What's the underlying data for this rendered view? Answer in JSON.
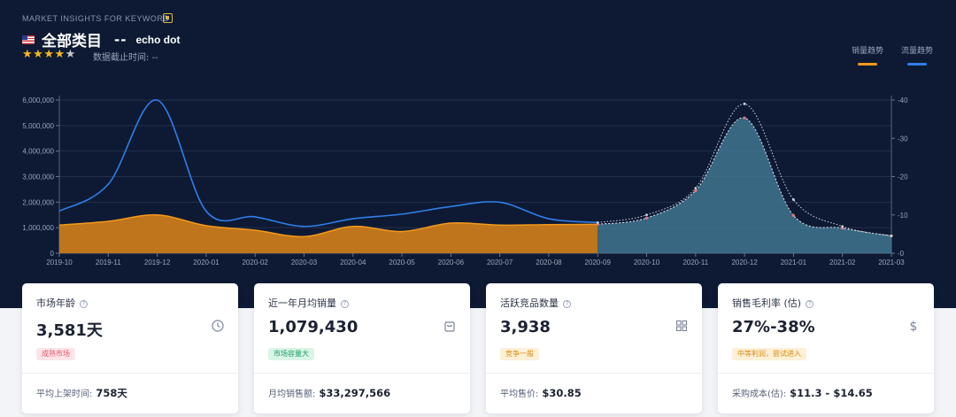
{
  "header": {
    "overline": "MARKET INSIGHTS FOR KEYWORD",
    "title": "全部类目",
    "separator": "--",
    "keyword": "echo dot",
    "rating": 4.5,
    "data_cutoff_label": "数据截止时间:",
    "data_cutoff_value": "--"
  },
  "legend": [
    {
      "label": "销量趋势",
      "color": "#f39a1c"
    },
    {
      "label": "流量趋势",
      "color": "#2f7ee8"
    }
  ],
  "chart_data": {
    "type": "area",
    "x": [
      "2019-10",
      "2019-11",
      "2019-12",
      "2020-01",
      "2020-02",
      "2020-03",
      "2020-04",
      "2020-05",
      "2020-06",
      "2020-07",
      "2020-08",
      "2020-09",
      "2020-10",
      "2020-11",
      "2020-12",
      "2021-01",
      "2021-02",
      "2021-03"
    ],
    "x_ticks": [
      "2019-10",
      "2019-11",
      "2019-12",
      "2020-01",
      "2020-02",
      "2020-03",
      "2020-04",
      "2020-05",
      "2020-06",
      "2020-07",
      "2020-08",
      "2020-09",
      "2020-10",
      "2020-11",
      "2020-12",
      "2021-01",
      "2021-02",
      "2021-03"
    ],
    "y_left": {
      "min": 0,
      "max": 6000000,
      "ticks": [
        "0",
        "1,000,000",
        "2,000,000",
        "3,000,000",
        "4,000,000",
        "5,000,000",
        "6,000,000"
      ]
    },
    "y_right": {
      "min": 0,
      "max": 40,
      "ticks": [
        "0",
        "10",
        "20",
        "30",
        "40"
      ]
    },
    "forecast_from": "2020-09",
    "series": [
      {
        "name": "销量趋势",
        "axis": "left",
        "color": "#f39a1c",
        "fill": "#c97a1a",
        "values": [
          1100000,
          1250000,
          1500000,
          1080000,
          900000,
          650000,
          1050000,
          850000,
          1180000,
          1100000,
          1120000,
          1130000,
          1380000,
          2450000,
          5300000,
          1480000,
          980000,
          680000
        ]
      },
      {
        "name": "流量趋势",
        "axis": "right",
        "color": "#2f7ee8",
        "values": [
          11,
          18,
          40,
          11,
          9.5,
          7,
          9,
          10.2,
          12.2,
          13.3,
          9,
          8,
          10,
          17,
          39,
          14,
          7,
          4.5
        ]
      }
    ],
    "grid": true
  },
  "cards": [
    {
      "label": "市场年龄",
      "value": "3,581天",
      "icon": "clock-icon",
      "badge": "成熟市场",
      "badge_color": "#e4566a",
      "badge_bg": "#fde4e8",
      "foot_label": "平均上架时间:",
      "foot_value": "758天"
    },
    {
      "label": "近一年月均销量",
      "value": "1,079,430",
      "icon": "shopping-bag-icon",
      "badge": "市场容量大",
      "badge_color": "#1f9c63",
      "badge_bg": "#d8f5e6",
      "foot_label": "月均销售额:",
      "foot_value": "$33,297,566"
    },
    {
      "label": "活跃竞品数量",
      "value": "3,938",
      "icon": "grid-icon",
      "badge": "竞争一般",
      "badge_color": "#d98a12",
      "badge_bg": "#fdf0d6",
      "foot_label": "平均售价:",
      "foot_value": "$30.85"
    },
    {
      "label": "销售毛利率 (估)",
      "value": "27%-38%",
      "icon": "dollar-icon",
      "badge": "中等利润，尝试进入",
      "badge_color": "#d98a12",
      "badge_bg": "#fdf0d6",
      "foot_label": "采购成本(估):",
      "foot_value": "$11.3 - $14.65"
    }
  ]
}
